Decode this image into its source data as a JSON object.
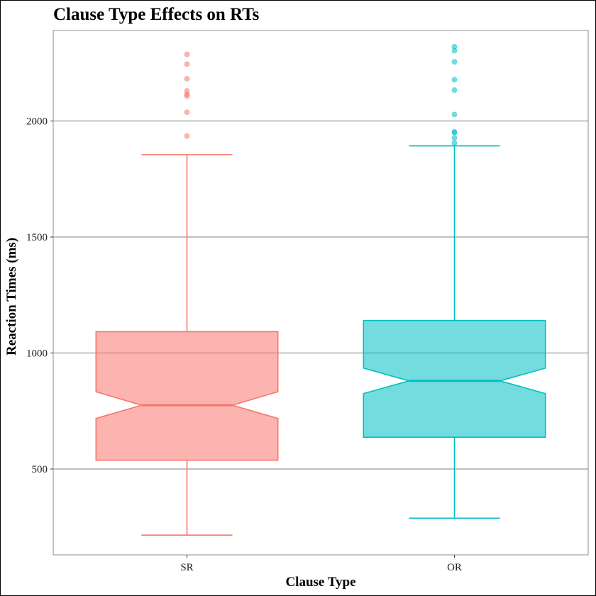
{
  "chart_data": {
    "type": "box",
    "title": "Clause Type Effects on RTs",
    "xlabel": "Clause Type",
    "ylabel": "Reaction Times (ms)",
    "ylim": [
      130,
      2390
    ],
    "yticks": [
      500,
      1000,
      1500,
      2000
    ],
    "grid": "horizontal major",
    "legend": "none",
    "notched": true,
    "categories": [
      "SR",
      "OR"
    ],
    "boxes": [
      {
        "category": "SR",
        "color": "#F8766D",
        "whisker_low": 215,
        "q1": 538,
        "notch_low": 718,
        "median": 775,
        "notch_high": 833,
        "q3": 1092,
        "whisker_high": 1855,
        "outliers": [
          1935,
          2038,
          2108,
          2115,
          2130,
          2182,
          2245,
          2287
        ]
      },
      {
        "category": "OR",
        "color": "#00BFC4",
        "whisker_low": 288,
        "q1": 637,
        "notch_low": 825,
        "median": 880,
        "notch_high": 935,
        "q3": 1140,
        "whisker_high": 1893,
        "outliers": [
          1905,
          1927,
          1950,
          1953,
          2028,
          2133,
          2178,
          2255,
          2303,
          2320
        ]
      }
    ]
  }
}
